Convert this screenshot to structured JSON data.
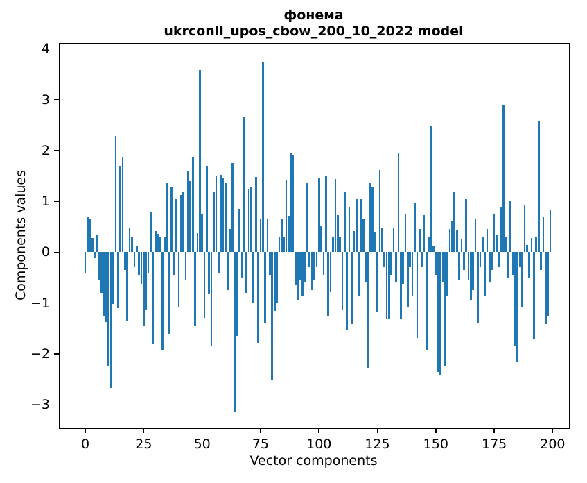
{
  "figure": {
    "title_line1": "фонема",
    "title_line2": "ukrconll_upos_cbow_200_10_2022 model",
    "xlabel": "Vector components",
    "ylabel": "Components values"
  },
  "chart_data": {
    "type": "bar",
    "title": "фонема",
    "subtitle": "ukrconll_upos_cbow_200_10_2022 model",
    "xlabel": "Vector components",
    "ylabel": "Components values",
    "bar_color": "#1f77b4",
    "grid": false,
    "legend": null,
    "x_start": 0,
    "xlim": [
      -11,
      207
    ],
    "ylim": [
      -3.46,
      4.1
    ],
    "xticks": [
      0,
      25,
      50,
      75,
      100,
      125,
      150,
      175,
      200
    ],
    "yticks": [
      4,
      3,
      2,
      1,
      0,
      -1,
      -2,
      -3
    ],
    "bar_width": 0.8,
    "values": [
      -0.4,
      0.7,
      0.65,
      0.28,
      -0.12,
      0.35,
      -0.55,
      -0.8,
      -1.26,
      -1.37,
      -2.24,
      -2.67,
      -1.02,
      2.28,
      -1.1,
      1.7,
      1.87,
      -0.35,
      -1.35,
      0.48,
      0.3,
      -0.3,
      0.12,
      -0.45,
      -0.62,
      -1.46,
      -1.13,
      -0.4,
      0.78,
      -1.8,
      0.42,
      0.36,
      0.3,
      -1.92,
      0.3,
      1.36,
      -1.62,
      1.28,
      -0.45,
      1.05,
      -1.07,
      1.13,
      1.2,
      -0.55,
      1.6,
      1.4,
      1.87,
      -1.46,
      0.38,
      3.58,
      0.75,
      -1.29,
      1.7,
      -0.83,
      -1.83,
      1.2,
      1.5,
      -0.4,
      1.52,
      1.45,
      1.37,
      -0.75,
      0.45,
      1.75,
      -3.15,
      -1.65,
      0.85,
      -0.5,
      2.67,
      -0.8,
      1.25,
      1.28,
      -1.0,
      1.48,
      -1.78,
      0.65,
      3.73,
      -1.39,
      0.65,
      -0.45,
      -2.51,
      -1.15,
      -1.0,
      0.3,
      0.65,
      0.3,
      1.42,
      0.72,
      1.95,
      1.92,
      -0.65,
      -0.95,
      -0.55,
      -0.85,
      -0.6,
      1.36,
      -0.3,
      -0.75,
      -0.55,
      -0.3,
      1.46,
      0.51,
      -0.45,
      1.49,
      -1.25,
      -0.78,
      0.3,
      1.44,
      0.73,
      0.29,
      -1.13,
      1.18,
      -1.53,
      0.88,
      -1.42,
      0.41,
      1.04,
      -0.85,
      1.05,
      0.65,
      -0.6,
      -2.27,
      1.36,
      1.29,
      0.4,
      -1.18,
      1.62,
      0.47,
      -0.3,
      -1.31,
      -1.32,
      -0.45,
      0.47,
      -0.6,
      1.96,
      -1.31,
      -0.62,
      0.75,
      -1.08,
      -0.3,
      -0.85,
      0.98,
      -1.69,
      0.45,
      -0.3,
      0.73,
      -1.92,
      0.3,
      2.49,
      0.11,
      -0.45,
      -2.35,
      -2.42,
      -0.6,
      -2.24,
      -0.85,
      0.45,
      0.62,
      1.19,
      0.44,
      -0.55,
      0.26,
      -0.35,
      1.04,
      -0.55,
      -0.95,
      -0.75,
      0.65,
      -1.4,
      -0.3,
      0.3,
      -0.85,
      0.45,
      -0.6,
      -0.35,
      0.76,
      0.35,
      -0.3,
      0.89,
      2.88,
      0.3,
      -0.5,
      1.0,
      -0.45,
      -1.85,
      -2.17,
      -0.3,
      -1.07,
      0.94,
      0.14,
      -0.5,
      0.28,
      -1.71,
      0.3,
      2.57,
      -0.35,
      0.7,
      -1.42,
      -1.26,
      0.84
    ]
  }
}
